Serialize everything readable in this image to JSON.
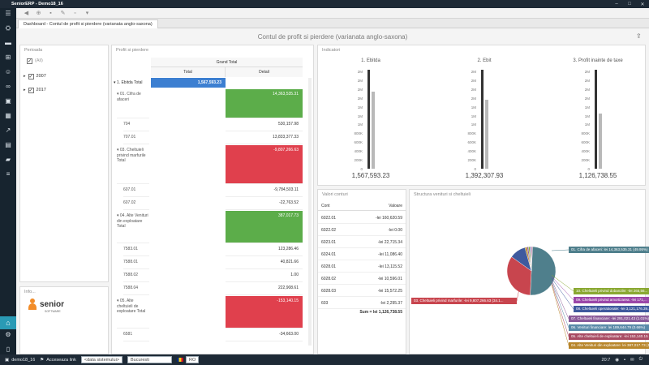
{
  "app": {
    "title": "SeniorERP - Demo18_16"
  },
  "tab": {
    "label": "Dashboard - Contul de profit si pierdere (varianata anglo-saxona)"
  },
  "dashboard": {
    "title": "Contul de profit si pierdere (varianata anglo-saxona)"
  },
  "filter": {
    "title": "Perioada",
    "items": [
      {
        "label": "(All)"
      },
      {
        "label": "2007"
      },
      {
        "label": "2017"
      }
    ]
  },
  "info": {
    "title": "Info...",
    "logo_text": "senior",
    "logo_sub": "SOFTWARE"
  },
  "pivot": {
    "title": "Profit si pierdere",
    "grand_total": "Grand Total",
    "col_total": "Total",
    "col_detail": "Detail",
    "row_ebitda": "1. Ebitda Total",
    "val_ebitda": "1,567,593.23",
    "rows": [
      {
        "label": "01. Cifra de afaceri",
        "value": "14,363,535.31",
        "style": "green"
      },
      {
        "label": "704",
        "value": "530,157.98",
        "style": "plain"
      },
      {
        "label": "707.01",
        "value": "13,833,377.33",
        "style": "plain"
      },
      {
        "label": "03. Cheltuieli privind marfurile Total",
        "value": "-9,807,266.63",
        "style": "red"
      },
      {
        "label": "607.01",
        "value": "-9,784,503.11",
        "style": "plain"
      },
      {
        "label": "607.02",
        "value": "-22,763.52",
        "style": "plain"
      },
      {
        "label": "04. Alte Venituri din exploatare Total",
        "value": "387,017.73",
        "style": "green"
      },
      {
        "label": "7583.01",
        "value": "123,286.46",
        "style": "plain"
      },
      {
        "label": "7588.01",
        "value": "40,821.66",
        "style": "plain"
      },
      {
        "label": "7588.02",
        "value": "1.00",
        "style": "plain"
      },
      {
        "label": "7588.04",
        "value": "222,908.61",
        "style": "plain"
      },
      {
        "label": "05. Alte cheltuieli de exploatare Total",
        "value": "-153,140.15",
        "style": "red"
      },
      {
        "label": "6581",
        "value": "-34,663.00",
        "style": "plain"
      }
    ]
  },
  "indicators": {
    "title": "Indicatori",
    "gauges": [
      {
        "title": "1. Ebitda",
        "value": "1,567,593.23",
        "fraction": 0.78
      },
      {
        "title": "2. Ebit",
        "value": "1,392,307.93",
        "fraction": 0.7
      },
      {
        "title": "3. Profit inainte de taxe",
        "value": "1,126,738.55",
        "fraction": 0.56
      }
    ],
    "ticks": [
      "2M",
      "2M",
      "2M",
      "2M",
      "1M",
      "1M",
      "1M",
      "800K",
      "600K",
      "400K",
      "200K",
      "0"
    ]
  },
  "valori": {
    "title": "Valori conturi",
    "col_cont": "Cont",
    "col_valoare": "Valoare",
    "rows": [
      {
        "cont": "6022.01",
        "valoare": "-lei 160,620.59"
      },
      {
        "cont": "6022.02",
        "valoare": "-lei 0.00"
      },
      {
        "cont": "6023.01",
        "valoare": "-lei 22,715.34"
      },
      {
        "cont": "6024.01",
        "valoare": "-lei 11,086.40"
      },
      {
        "cont": "6028.01",
        "valoare": "-lei 13,115.52"
      },
      {
        "cont": "6028.02",
        "valoare": "-lei 10,596.01"
      },
      {
        "cont": "6028.03",
        "valoare": "-lei 15,572.25"
      },
      {
        "cont": "603",
        "valoare": "-lei 2,295.37"
      }
    ],
    "sum": "Sum = lei 1,126,738.55"
  },
  "structura": {
    "title": "Structura venituri si cheltuieli",
    "labels": [
      {
        "text": "01. Cifra de afaceri: lei 14,363,535.31 (49.95%)",
        "color": "#4f7f8c"
      },
      {
        "text": "10. Cheltuieli privind dobanzile: -lei 265,56...",
        "color": "#8aa832"
      },
      {
        "text": "09. Cheltuieli privind amortizarea: -lei 171,...",
        "color": "#9b46a8"
      },
      {
        "text": "08. Cheltuieli operationale: -lei 3,121,176.39...",
        "color": "#3f5a9e"
      },
      {
        "text": "07. Cheltuieli financiare: -lei 291,021.43 (1.01%)",
        "color": "#8a5a99"
      },
      {
        "text": "06. Venituri financiare: lei 189,644.79 (0.66%)",
        "color": "#5a8aa8"
      },
      {
        "text": "05. Alte cheltuieli de exploatare: -lei 153,140.15 (0...",
        "color": "#a84b63"
      },
      {
        "text": "04. Alte Venituri din exploatare: lei 387,017.73 (1....",
        "color": "#b8862b"
      },
      {
        "text": "03. Cheltuieli privind marfurile: -lei 9,807,266.63 (34.1...",
        "color": "#c8454e"
      }
    ],
    "chart_data": {
      "type": "pie",
      "categories": [
        "01. Cifra de afaceri",
        "03. Cheltuieli privind marfurile",
        "08. Cheltuieli operationale",
        "04. Alte Venituri din exploatare",
        "07. Cheltuieli financiare",
        "10. Cheltuieli privind dobanzile",
        "06. Venituri financiare",
        "09. Cheltuieli privind amortizarea",
        "05. Alte cheltuieli de exploatare"
      ],
      "values": [
        49.95,
        34.1,
        10.85,
        1.35,
        1.01,
        0.92,
        0.66,
        0.6,
        0.53
      ],
      "colors": [
        "#4f7f8c",
        "#c8454e",
        "#3f5a9e",
        "#b8862b",
        "#8a5a99",
        "#8aa832",
        "#5a8aa8",
        "#9b46a8",
        "#a84b63"
      ]
    }
  },
  "status": {
    "user": "demo18_16",
    "link": "Acceseaza link",
    "date_placeholder": "<data sistemului>",
    "city": "Bucuresti",
    "lang": "RO",
    "time": "20:7"
  }
}
